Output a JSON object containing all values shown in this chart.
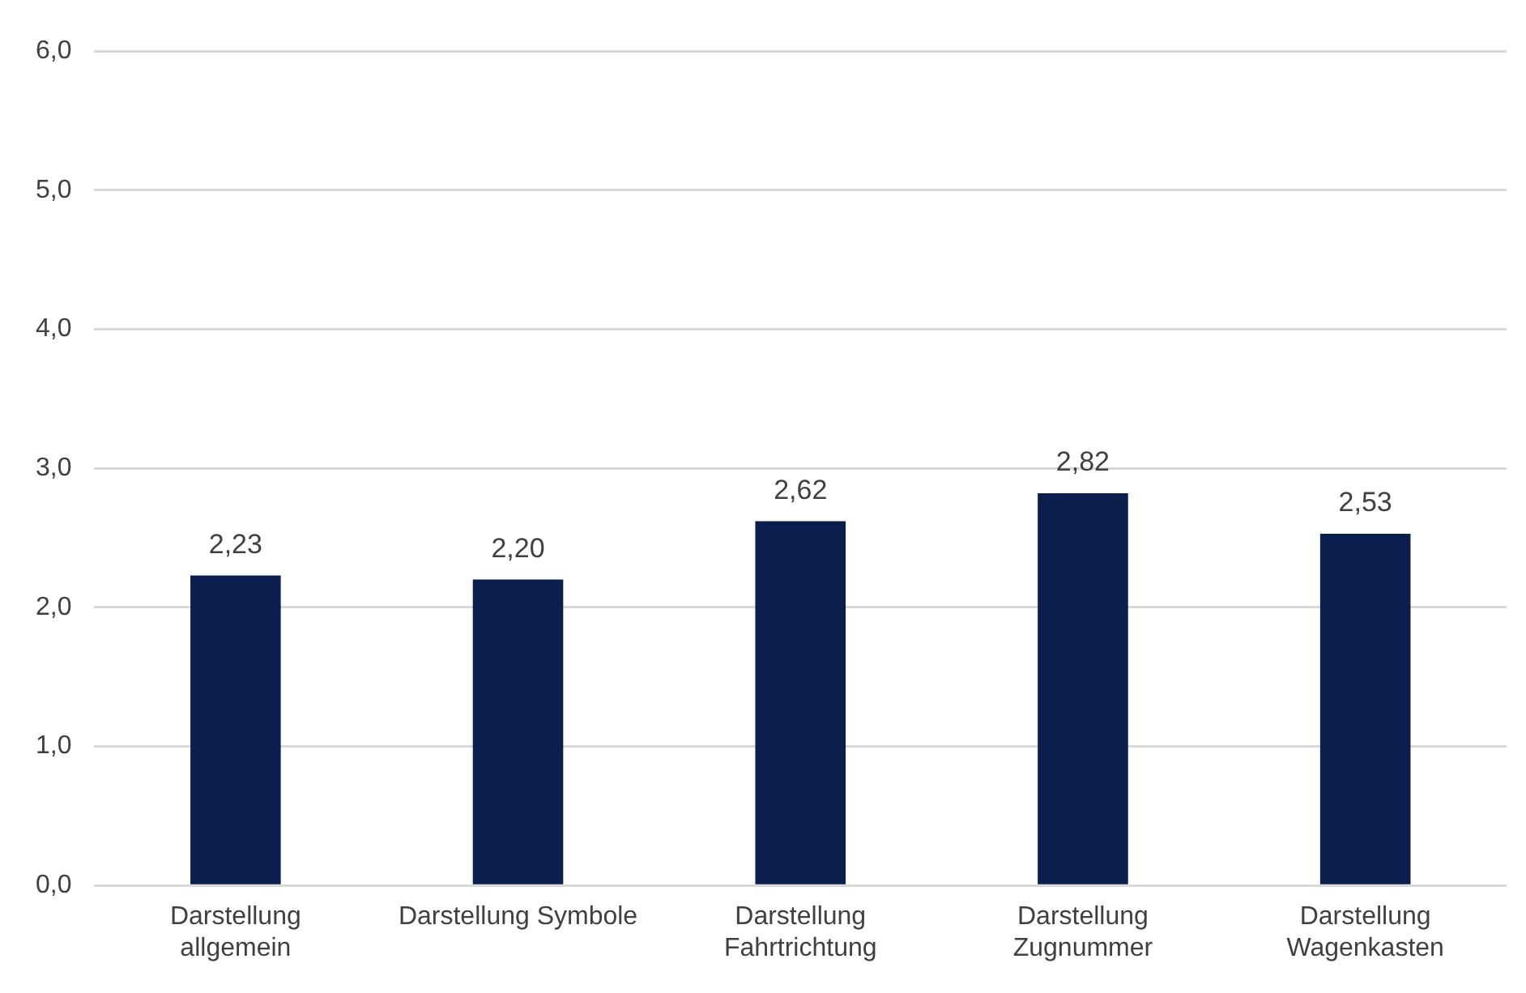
{
  "chart_data": {
    "type": "bar",
    "categories": [
      "Darstellung allgemein",
      "Darstellung Symbole",
      "Darstellung Fahrtrichtung",
      "Darstellung Zugnummer",
      "Darstellung Wagenkasten"
    ],
    "values": [
      2.23,
      2.2,
      2.62,
      2.82,
      2.53
    ],
    "value_labels": [
      "2,23",
      "2,20",
      "2,62",
      "2,82",
      "2,53"
    ],
    "color": "#0c1e4e",
    "ylim": [
      0,
      6
    ],
    "yticks": [
      {
        "value": 0,
        "label": "0,0"
      },
      {
        "value": 1,
        "label": "1,0"
      },
      {
        "value": 2,
        "label": "2,0"
      },
      {
        "value": 3,
        "label": "3,0"
      },
      {
        "value": 4,
        "label": "4,0"
      },
      {
        "value": 5,
        "label": "5,0"
      },
      {
        "value": 6,
        "label": "6,0"
      }
    ],
    "grid": "y",
    "legend": false
  }
}
